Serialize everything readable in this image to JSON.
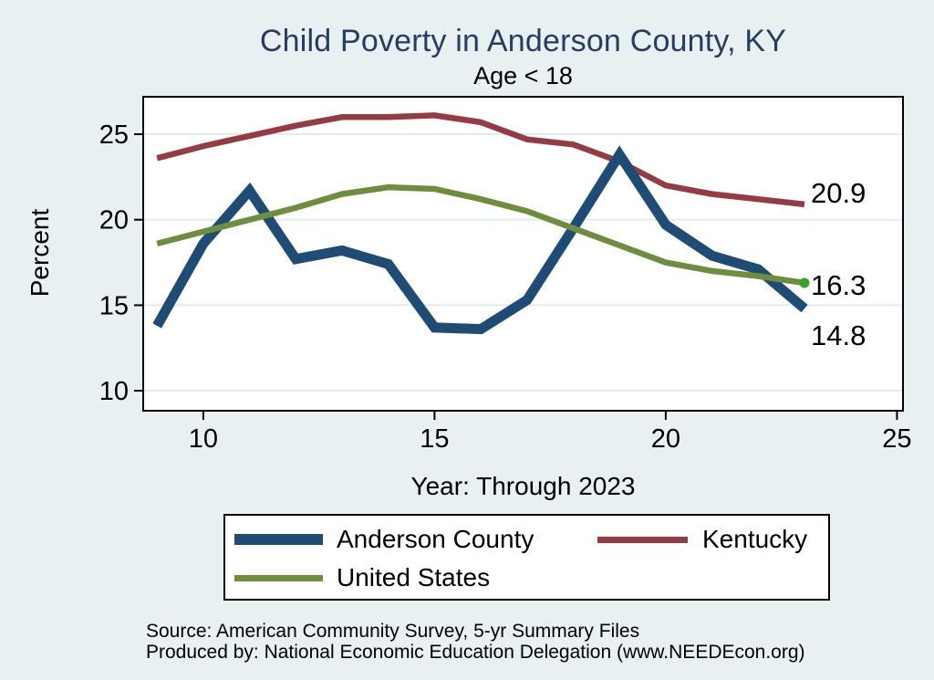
{
  "chart_data": {
    "type": "line",
    "title": "Child Poverty in Anderson County, KY",
    "title_color": "#273c63",
    "subtitle": "Age < 18",
    "xlabel": "Year: Through 2023",
    "ylabel": "Percent",
    "x": [
      9,
      10,
      11,
      12,
      13,
      14,
      15,
      16,
      17,
      18,
      19,
      20,
      21,
      22,
      23
    ],
    "x_ticks": [
      10,
      15,
      20,
      25
    ],
    "y_ticks": [
      10,
      15,
      20,
      25
    ],
    "xlim": [
      8.7,
      25.13
    ],
    "ylim": [
      8.83,
      27.19
    ],
    "grid": "horizontal-only",
    "gridline_color": "#e2ebee",
    "plot_background": "#ffffff",
    "page_background": "#e9f0f2",
    "legend_position": "bottom-box",
    "series": [
      {
        "name": "Anderson County",
        "color": "#1e4c74",
        "width": 11,
        "z": 2,
        "values": [
          13.8,
          18.6,
          21.7,
          17.7,
          18.2,
          17.4,
          13.7,
          13.6,
          15.3,
          19.5,
          23.8,
          19.7,
          17.9,
          17.1,
          14.8
        ],
        "end_label": "14.8"
      },
      {
        "name": "Kentucky",
        "color": "#953b43",
        "width": 6.5,
        "z": 1,
        "values": [
          23.6,
          24.3,
          24.9,
          25.5,
          26.0,
          26.0,
          26.1,
          25.7,
          24.7,
          24.4,
          23.4,
          22.0,
          21.5,
          21.2,
          20.9
        ],
        "end_label": "20.9"
      },
      {
        "name": "United States",
        "color": "#6e8e3d",
        "width": 6.5,
        "z": 3,
        "values": [
          18.6,
          19.3,
          20.0,
          20.7,
          21.5,
          21.9,
          21.8,
          21.2,
          20.5,
          19.5,
          18.5,
          17.5,
          17.0,
          16.7,
          16.3
        ],
        "end_label": "16.3",
        "end_dot_color": "#3aa32f"
      }
    ]
  },
  "source": {
    "line1": "Source: American Community Survey, 5-yr Summary Files",
    "line2": "Produced by: National Economic Education Delegation (www.NEEDEcon.org)"
  }
}
